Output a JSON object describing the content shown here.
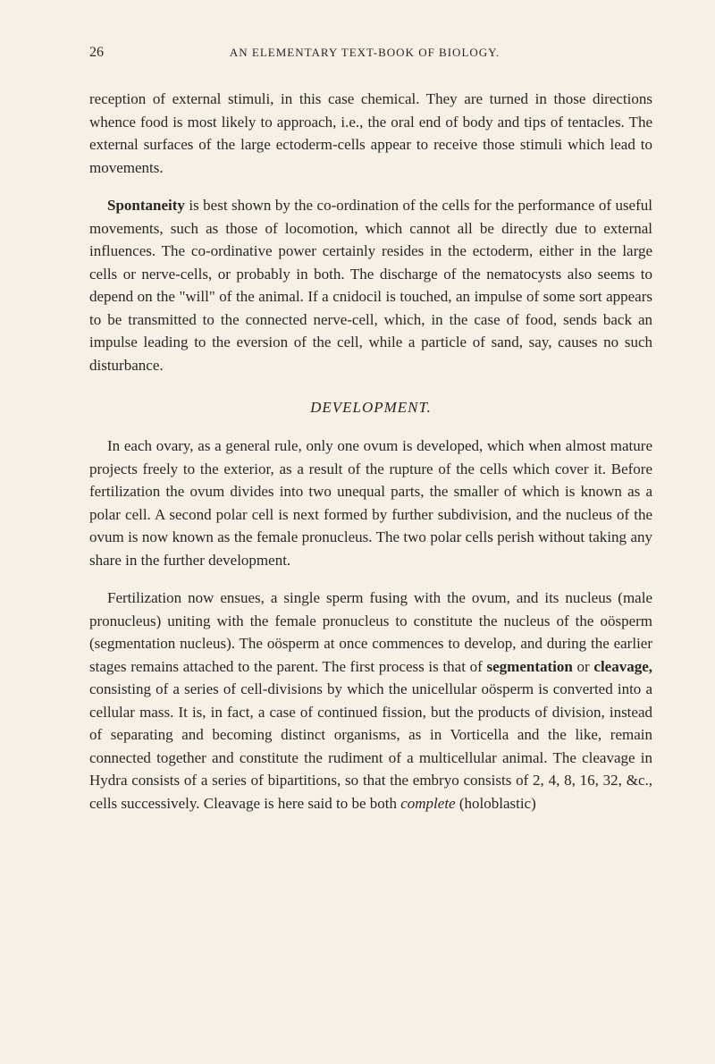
{
  "header": {
    "page_number": "26",
    "book_title": "AN ELEMENTARY TEXT-BOOK OF BIOLOGY."
  },
  "paragraphs": {
    "p1": "reception of external stimuli, in this case chemical. They are turned in those directions whence food is most likely to approach, i.e., the oral end of body and tips of tentacles. The external surfaces of the large ectoderm-cells appear to receive those stimuli which lead to movements.",
    "p2_prefix": "Spontaneity",
    "p2_text": " is best shown by the co-ordination of the cells for the performance of useful movements, such as those of locomotion, which cannot all be directly due to external influences. The co-ordinative power certainly resides in the ectoderm, either in the large cells or nerve-cells, or probably in both. The discharge of the nematocysts also seems to depend on the \"will\" of the animal. If a cnidocil is touched, an impulse of some sort appears to be transmitted to the connected nerve-cell, which, in the case of food, sends back an impulse leading to the eversion of the cell, while a particle of sand, say, causes no such disturbance.",
    "section_heading": "DEVELOPMENT.",
    "p3": "In each ovary, as a general rule, only one ovum is developed, which when almost mature projects freely to the exterior, as a result of the rupture of the cells which cover it. Before fertilization the ovum divides into two unequal parts, the smaller of which is known as a polar cell. A second polar cell is next formed by further subdivision, and the nucleus of the ovum is now known as the female pronucleus. The two polar cells perish without taking any share in the further development.",
    "p4_a": "Fertilization now ensues, a single sperm fusing with the ovum, and its nucleus (male pronucleus) uniting with the female pronucleus to constitute the nucleus of the oösperm (segmentation nucleus). The oösperm at once commences to develop, and during the earlier stages remains attached to the parent. The first process is that of ",
    "p4_seg": "segmentation",
    "p4_or": " or ",
    "p4_cleav": "cleavage,",
    "p4_b": " consisting of a series of cell-divisions by which the unicellular oösperm is converted into a cellular mass. It is, in fact, a case of continued fission, but the products of division, instead of separating and becoming distinct organisms, as in Vorticella and the like, remain connected together and constitute the rudiment of a multicellular animal. The cleavage in Hydra consists of a series of bipartitions, so that the embryo consists of 2, 4, 8, 16, 32, &c., cells successively. Cleavage is here said to be both ",
    "p4_complete": "complete",
    "p4_c": " (holoblastic)"
  }
}
